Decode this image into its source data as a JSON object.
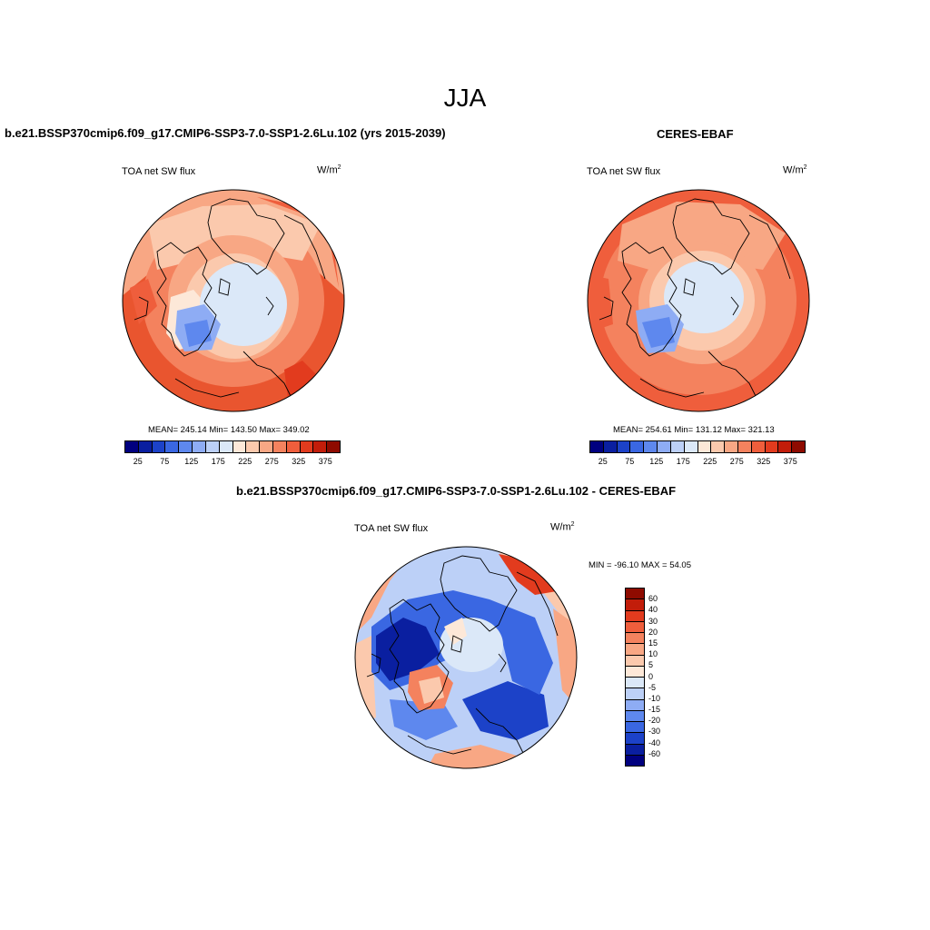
{
  "title": "JJA",
  "panels": {
    "model": {
      "title": "b.e21.BSSP370cmip6.f09_g17.CMIP6-SSP3-7.0-SSP1-2.6Lu.102 (yrs 2015-2039)",
      "variable": "TOA net SW flux",
      "units_base": "W/m",
      "units_exp": "2",
      "stats": "MEAN= 245.14  Min= 143.50  Max= 349.02"
    },
    "obs": {
      "title": "CERES-EBAF",
      "variable": "TOA net SW flux",
      "units_base": "W/m",
      "units_exp": "2",
      "stats": "MEAN= 254.61  Min= 131.12  Max= 321.13"
    },
    "diff": {
      "title": "b.e21.BSSP370cmip6.f09_g17.CMIP6-SSP3-7.0-SSP1-2.6Lu.102 - CERES-EBAF",
      "variable": "TOA net SW flux",
      "units_base": "W/m",
      "units_exp": "2",
      "minmax": "MIN = -96.10 MAX =  54.05"
    }
  },
  "colorbar_abs": {
    "colors": [
      "#00007f",
      "#0a1fa0",
      "#1c42c8",
      "#3a67e2",
      "#5e88ee",
      "#8eacf4",
      "#bcd0f7",
      "#dbe8f8",
      "#fde8d8",
      "#fbc9ad",
      "#f8a784",
      "#f4825e",
      "#ef5e3c",
      "#e23b1e",
      "#c21d0a",
      "#8e0b00"
    ],
    "ticks": [
      "25",
      "75",
      "125",
      "175",
      "225",
      "275",
      "325",
      "375"
    ]
  },
  "colorbar_diff": {
    "colors": [
      "#8e0b00",
      "#c21d0a",
      "#e23b1e",
      "#ef5e3c",
      "#f4825e",
      "#f8a784",
      "#fbc9ad",
      "#fde8d8",
      "#dbe8f8",
      "#bcd0f7",
      "#8eacf4",
      "#5e88ee",
      "#3a67e2",
      "#1c42c8",
      "#0a1fa0",
      "#00007f"
    ],
    "ticks": [
      "60",
      "40",
      "30",
      "20",
      "15",
      "10",
      "5",
      "0",
      "-5",
      "-10",
      "-15",
      "-20",
      "-30",
      "-40",
      "-60"
    ]
  }
}
